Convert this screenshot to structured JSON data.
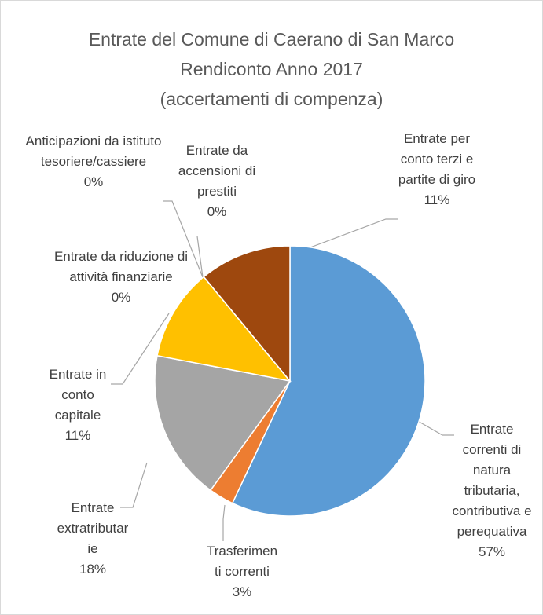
{
  "chart_data": {
    "type": "pie",
    "title": "Entrate del Comune di Caerano di San Marco\nRendiconto Anno 2017\n(accertamenti di compenza)",
    "categories": [
      "Entrate correnti di natura tributaria, contributiva e perequativa",
      "Trasferimenti correnti",
      "Entrate extratributarie",
      "Entrate in conto capitale",
      "Entrate da riduzione di attività finanziarie",
      "Anticipazioni da istituto tesoriere/cassiere",
      "Entrate da accensioni di prestiti",
      "Entrate per conto terzi e partite di giro"
    ],
    "values": [
      57,
      3,
      18,
      11,
      0,
      0,
      0,
      11
    ],
    "value_labels": [
      "57%",
      "3%",
      "18%",
      "11%",
      "0%",
      "0%",
      "0%",
      "11%"
    ],
    "colors": [
      "#5b9bd5",
      "#ed7d31",
      "#a5a5a5",
      "#ffc000",
      "#4472c4",
      "#70ad47",
      "#264478",
      "#9e480e"
    ]
  }
}
